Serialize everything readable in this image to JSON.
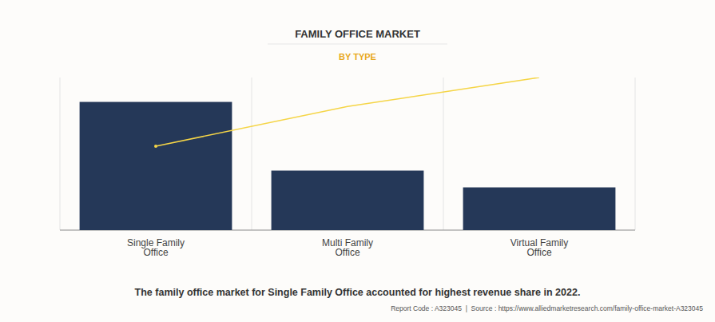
{
  "chart_data": {
    "type": "bar",
    "title": "FAMILY OFFICE MARKET",
    "subtitle": "BY TYPE",
    "categories": [
      "Single Family Office",
      "Multi Family Office",
      "Virtual Family Office"
    ],
    "series": [
      {
        "type": "bar",
        "color": "#253858",
        "values": [
          84,
          39,
          28
        ]
      },
      {
        "type": "line",
        "color": "#f5d547",
        "values": [
          55,
          81,
          100
        ]
      }
    ],
    "ylim": [
      0,
      100
    ],
    "tick_labels": "x",
    "grid": false,
    "caption": "The family office market for Single Family Office accounted for highest revenue share in 2022.",
    "source": "Report Code : A323045  |  Source : https://www.alliedmarketresearch.com/family-office-market-A323045"
  }
}
